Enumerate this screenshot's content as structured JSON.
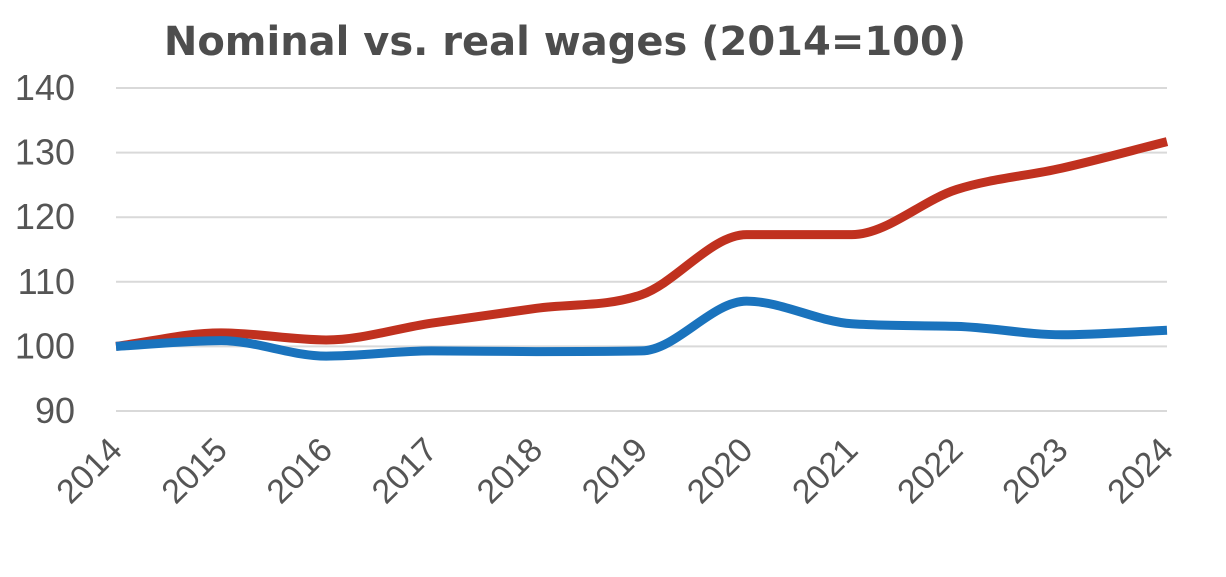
{
  "chart_data": {
    "type": "line",
    "title": "Nominal vs. real  wages (2014=100)",
    "xlabel": "",
    "ylabel": "",
    "x": [
      "2014",
      "2015",
      "2016",
      "2017",
      "2018",
      "2019",
      "2020",
      "2021",
      "2022",
      "2023",
      "2024"
    ],
    "ylim": [
      90,
      140
    ],
    "yticks": [
      90,
      100,
      110,
      120,
      130,
      140
    ],
    "grid": true,
    "legend": "none",
    "series": [
      {
        "color": "#c0311f",
        "values": [
          100,
          102.1,
          101.0,
          103.6,
          105.9,
          108.0,
          117.3,
          117.3,
          124.3,
          127.6,
          131.7
        ]
      },
      {
        "color": "#1a73bd",
        "values": [
          100,
          100.9,
          98.5,
          99.3,
          99.2,
          99.3,
          107.0,
          103.5,
          103.1,
          101.8,
          102.5
        ]
      }
    ]
  }
}
